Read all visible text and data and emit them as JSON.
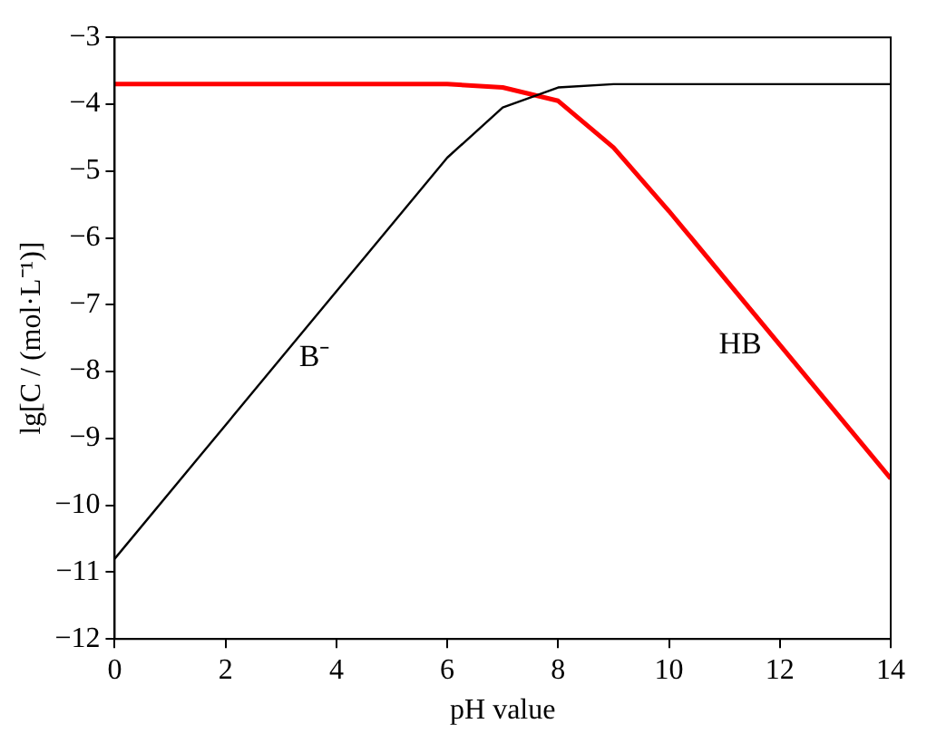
{
  "chart_data": {
    "type": "line",
    "xlabel": "pH value",
    "ylabel": "lg[C / (mol·L⁻¹)]",
    "xlim": [
      0,
      14
    ],
    "xticks": [
      0,
      2,
      4,
      6,
      8,
      10,
      12,
      14
    ],
    "ylim": [
      -12,
      -3
    ],
    "yticks": [
      -12,
      -11,
      -10,
      -9,
      -8,
      -7,
      -6,
      -5,
      -4,
      -3
    ],
    "grid": false,
    "legend": false,
    "marker": "none",
    "line_style": "solid",
    "series": [
      {
        "name": "B⁻",
        "color": "#000000",
        "x": [
          0,
          3,
          6,
          7,
          8,
          9,
          14
        ],
        "values": [
          -10.8,
          -7.8,
          -4.8,
          -4.05,
          -3.75,
          -3.7,
          -3.7
        ]
      },
      {
        "name": "HB",
        "color": "#ff0000",
        "x": [
          0,
          6,
          7,
          8,
          9,
          10,
          12,
          14
        ],
        "values": [
          -3.7,
          -3.7,
          -3.75,
          -3.95,
          -4.65,
          -5.6,
          -7.6,
          -9.6
        ]
      }
    ]
  }
}
